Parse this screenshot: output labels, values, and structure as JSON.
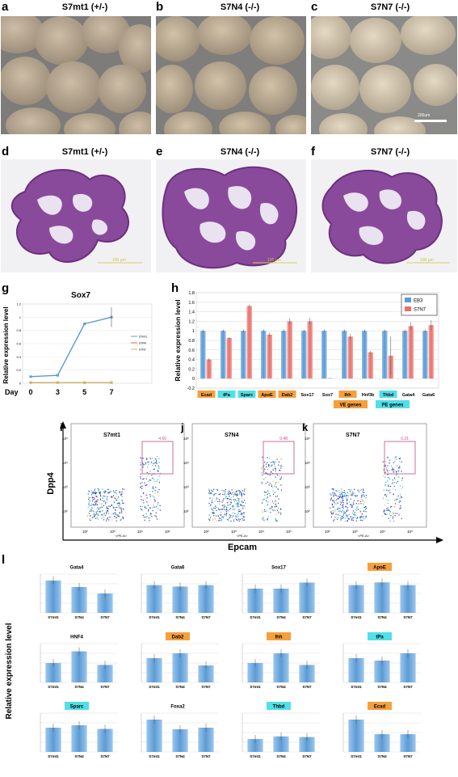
{
  "photos_top": [
    {
      "label": "a",
      "title": "S7mt1 (+/-)"
    },
    {
      "label": "b",
      "title": "S7N4 (-/-)"
    },
    {
      "label": "c",
      "title": "S7N7 (-/-)",
      "scale_bar": "200um"
    }
  ],
  "photos_mid": [
    {
      "label": "d",
      "title": "S7mt1 (+/-)",
      "scale_text": "100 μm"
    },
    {
      "label": "e",
      "title": "S7N4 (-/-)",
      "scale_text": "100 μm"
    },
    {
      "label": "f",
      "title": "S7N7 (-/-)",
      "scale_text": "100 μm"
    }
  ],
  "panel_g": {
    "label": "g",
    "chart_data": {
      "type": "line",
      "title": "Sox7",
      "ylabel": "Relative expression level",
      "xlabel_prefix": "Day",
      "categories": [
        "0",
        "3",
        "5",
        "7"
      ],
      "yticks": [
        "0",
        "0.2",
        "0.4",
        "0.6",
        "0.8",
        "1",
        "1.2"
      ],
      "ylim": [
        0,
        1.2
      ],
      "series": [
        {
          "name": "S7mt1",
          "values": [
            0.1,
            0.12,
            0.9,
            1.0
          ],
          "color": "#5b9bd5"
        },
        {
          "name": "S7N4",
          "values": [
            0.01,
            0.01,
            0.01,
            0.01
          ],
          "color": "#e46c4a"
        },
        {
          "name": "S7N7",
          "values": [
            0.01,
            0.01,
            0.01,
            0.01
          ],
          "color": "#c9b96c"
        }
      ]
    }
  },
  "panel_h": {
    "label": "h",
    "chart_data": {
      "type": "bar",
      "ylabel": "Relative expression level",
      "ylim": [
        -0.2,
        1.8
      ],
      "yticks": [
        "-0.2",
        "0",
        "0.2",
        "0.4",
        "0.6",
        "0.8",
        "1",
        "1.2",
        "1.4",
        "1.6",
        "1.8"
      ],
      "categories": [
        "Ecad",
        "tPa",
        "Sparc",
        "ApoE",
        "Dab2",
        "Sox17",
        "Sox7",
        "Ihh",
        "Hnf3b",
        "Thbd",
        "Gata4",
        "Gata6"
      ],
      "category_tags": [
        "VE",
        "PE",
        "PE",
        "VE",
        "VE",
        "",
        "",
        "VE",
        "",
        "PE",
        "",
        ""
      ],
      "series": [
        {
          "name": "EB3",
          "values": [
            1,
            1,
            1,
            1,
            1,
            1,
            1,
            1,
            1,
            1,
            1,
            1
          ],
          "color": "#5b9bd5"
        },
        {
          "name": "S7N7",
          "values": [
            0.4,
            0.85,
            1.52,
            0.92,
            1.2,
            1.2,
            0.01,
            0.88,
            0.55,
            0.48,
            1.1,
            1.12
          ],
          "color": "#e8706b"
        }
      ],
      "legend_tags": {
        "ve": "VE genes",
        "pe": "PE genes"
      },
      "tag_colors": {
        "ve": "#f5a03c",
        "pe": "#4fe0e8"
      }
    }
  },
  "facs": {
    "ylabel": "Dpp4",
    "xlabel": "Epcam",
    "axis_tick_label": "<PE-A>",
    "panels": [
      {
        "label": "i",
        "name": "S7mt1",
        "gate": "4.60"
      },
      {
        "label": "j",
        "name": "S7N4",
        "gate": "0.48"
      },
      {
        "label": "k",
        "name": "S7N7",
        "gate": "0.31"
      }
    ]
  },
  "panel_l": {
    "label": "l",
    "ylabel": "Relative expression level",
    "chart_data": [
      {
        "type": "bar",
        "title": "Gata4",
        "tag": "",
        "categories": [
          "S7mt1",
          "S7N4",
          "S7N7"
        ],
        "values": [
          1.0,
          0.8,
          0.6
        ],
        "ylim": [
          0,
          1.2
        ]
      },
      {
        "type": "bar",
        "title": "Gata6",
        "tag": "",
        "categories": [
          "S7mt1",
          "S7N4",
          "S7N7"
        ],
        "values": [
          1.0,
          0.95,
          1.0
        ],
        "ylim": [
          0,
          1.4
        ]
      },
      {
        "type": "bar",
        "title": "Sox17",
        "tag": "",
        "categories": [
          "S7mt1",
          "S7N4",
          "S7N7"
        ],
        "values": [
          1.0,
          1.0,
          1.25
        ],
        "ylim": [
          0,
          1.6
        ]
      },
      {
        "type": "bar",
        "title": "ApoE",
        "tag": "VE",
        "categories": [
          "S7mt1",
          "S7N4",
          "S7N7"
        ],
        "values": [
          1.0,
          1.1,
          1.0
        ],
        "ylim": [
          0,
          1.4
        ]
      },
      {
        "type": "bar",
        "title": "HNF4",
        "tag": "",
        "categories": [
          "S7mt1",
          "S7N4",
          "S7N7"
        ],
        "values": [
          1.0,
          1.6,
          0.9
        ],
        "ylim": [
          0,
          2.0
        ]
      },
      {
        "type": "bar",
        "title": "Dab2",
        "tag": "VE",
        "categories": [
          "S7mt1",
          "S7N4",
          "S7N7"
        ],
        "values": [
          1.0,
          1.2,
          0.7
        ],
        "ylim": [
          0,
          1.6
        ]
      },
      {
        "type": "bar",
        "title": "Ihh",
        "tag": "VE",
        "categories": [
          "S7mt1",
          "S7N4",
          "S7N7"
        ],
        "values": [
          1.0,
          1.5,
          0.9
        ],
        "ylim": [
          0,
          2.0
        ]
      },
      {
        "type": "bar",
        "title": "tPa",
        "tag": "PE",
        "categories": [
          "S7mt1",
          "S7N4",
          "S7N7"
        ],
        "values": [
          1.0,
          0.9,
          1.2
        ],
        "ylim": [
          0,
          1.6
        ]
      },
      {
        "type": "bar",
        "title": "Sparc",
        "tag": "PE",
        "categories": [
          "S7mt1",
          "S7N4",
          "S7N7"
        ],
        "values": [
          1.0,
          1.1,
          0.95
        ],
        "ylim": [
          0,
          1.6
        ]
      },
      {
        "type": "bar",
        "title": "Foxa2",
        "tag": "",
        "categories": [
          "S7mt1",
          "S7N4",
          "S7N7"
        ],
        "values": [
          1.0,
          0.7,
          0.75
        ],
        "ylim": [
          0,
          1.2
        ]
      },
      {
        "type": "bar",
        "title": "Thbd",
        "tag": "PE",
        "categories": [
          "S7mt1",
          "S7N4",
          "S7N7"
        ],
        "values": [
          1.0,
          1.2,
          1.15
        ],
        "ylim": [
          0,
          3.0
        ]
      },
      {
        "type": "bar",
        "title": "Ecad",
        "tag": "VE",
        "categories": [
          "S7mt1",
          "S7N4",
          "S7N7"
        ],
        "values": [
          1.0,
          0.55,
          0.55
        ],
        "ylim": [
          0,
          1.2
        ]
      }
    ]
  },
  "colors": {
    "bar_blue": "#5b9bd5",
    "bar_red": "#e8706b",
    "ve": "#f5a03c",
    "pe": "#4fe0e8",
    "he_purple": "#7c3a8e"
  }
}
